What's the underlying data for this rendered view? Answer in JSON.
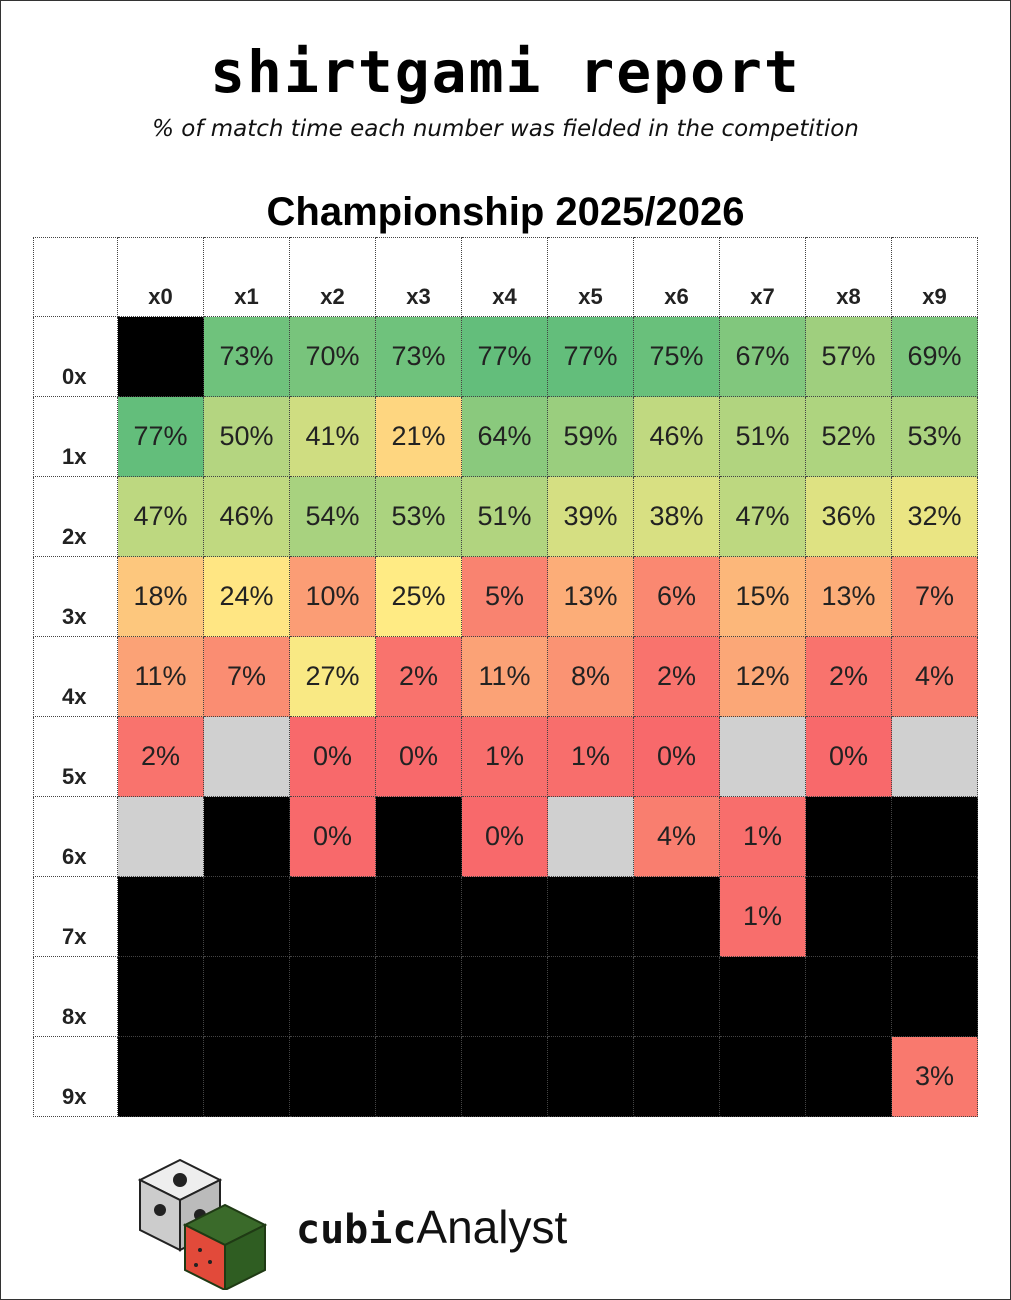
{
  "header": {
    "title": "shirtgami report",
    "subtitle": "% of match time each number was fielded in the competition"
  },
  "chart_data": {
    "type": "heatmap",
    "title": "Championship 2025/2026",
    "x_categories": [
      "x0",
      "x1",
      "x2",
      "x3",
      "x4",
      "x5",
      "x6",
      "x7",
      "x8",
      "x9"
    ],
    "y_categories": [
      "0x",
      "1x",
      "2x",
      "3x",
      "4x",
      "5x",
      "6x",
      "7x",
      "8x",
      "9x"
    ],
    "values": [
      [
        null,
        73,
        70,
        73,
        77,
        77,
        75,
        67,
        57,
        69
      ],
      [
        77,
        50,
        41,
        21,
        64,
        59,
        46,
        51,
        52,
        53
      ],
      [
        47,
        46,
        54,
        53,
        51,
        39,
        38,
        47,
        36,
        32
      ],
      [
        18,
        24,
        10,
        25,
        5,
        13,
        6,
        15,
        13,
        7
      ],
      [
        11,
        7,
        27,
        2,
        11,
        8,
        2,
        12,
        2,
        4
      ],
      [
        2,
        null,
        0,
        0,
        1,
        1,
        0,
        null,
        0,
        null
      ],
      [
        null,
        null,
        0,
        null,
        0,
        null,
        4,
        1,
        null,
        null
      ],
      [
        null,
        null,
        null,
        null,
        null,
        null,
        null,
        1,
        null,
        null
      ],
      [
        null,
        null,
        null,
        null,
        null,
        null,
        null,
        null,
        null,
        null
      ],
      [
        null,
        null,
        null,
        null,
        null,
        null,
        null,
        null,
        null,
        3
      ]
    ],
    "value_labels": [
      [
        null,
        "73%",
        "70%",
        "73%",
        "77%",
        "77%",
        "75%",
        "67%",
        "57%",
        "69%"
      ],
      [
        "77%",
        "50%",
        "41%",
        "21%",
        "64%",
        "59%",
        "46%",
        "51%",
        "52%",
        "53%"
      ],
      [
        "47%",
        "46%",
        "54%",
        "53%",
        "51%",
        "39%",
        "38%",
        "47%",
        "36%",
        "32%"
      ],
      [
        "18%",
        "24%",
        "10%",
        "25%",
        "5%",
        "13%",
        "6%",
        "15%",
        "13%",
        "7%"
      ],
      [
        "11%",
        "7%",
        "27%",
        "2%",
        "11%",
        "8%",
        "2%",
        "12%",
        "2%",
        "4%"
      ],
      [
        "2%",
        null,
        "0%",
        "0%",
        "1%",
        "1%",
        "0%",
        null,
        "0%",
        null
      ],
      [
        null,
        null,
        "0%",
        null,
        "0%",
        null,
        "4%",
        "1%",
        null,
        null
      ],
      [
        null,
        null,
        null,
        null,
        null,
        null,
        null,
        "1%",
        null,
        null
      ],
      [
        null,
        null,
        null,
        null,
        null,
        null,
        null,
        null,
        null,
        null
      ],
      [
        null,
        null,
        null,
        null,
        null,
        null,
        null,
        null,
        null,
        "3%"
      ]
    ],
    "colors": [
      [
        "#000000",
        "#6fc27c",
        "#78c47c",
        "#6fc27c",
        "#63be7b",
        "#63be7b",
        "#69c07b",
        "#81c77d",
        "#9fcf7e",
        "#7bc57c"
      ],
      [
        "#63be7b",
        "#b4d580",
        "#cfdd81",
        "#fed680",
        "#8ac97d",
        "#9ace7e",
        "#c0d980",
        "#b1d47f",
        "#aed47f",
        "#abd37f"
      ],
      [
        "#bdd880",
        "#c0d980",
        "#a8d27f",
        "#abd37f",
        "#b1d47f",
        "#d5df82",
        "#d8e082",
        "#bdd880",
        "#dee282",
        "#eae583"
      ],
      [
        "#fdc77d",
        "#ffe683",
        "#fb9d75",
        "#ffeb84",
        "#f98370",
        "#fcad78",
        "#fa8871",
        "#fcb77a",
        "#fcad78",
        "#fa8d72"
      ],
      [
        "#fba276",
        "#fa8d72",
        "#f9e984",
        "#f9736d",
        "#fba276",
        "#fa9373",
        "#f9736d",
        "#fba777",
        "#f9736d",
        "#f97e6f"
      ],
      [
        "#f9736d",
        "#d0d0d0",
        "#f8696b",
        "#f8696b",
        "#f86e6c",
        "#f86e6c",
        "#f8696b",
        "#d0d0d0",
        "#f8696b",
        "#d0d0d0"
      ],
      [
        "#d0d0d0",
        "#000000",
        "#f8696b",
        "#000000",
        "#f8696b",
        "#d0d0d0",
        "#f97e6f",
        "#f86e6c",
        "#000000",
        "#000000"
      ],
      [
        "#000000",
        "#000000",
        "#000000",
        "#000000",
        "#000000",
        "#000000",
        "#000000",
        "#f86e6c",
        "#000000",
        "#000000"
      ],
      [
        "#000000",
        "#000000",
        "#000000",
        "#000000",
        "#000000",
        "#000000",
        "#000000",
        "#000000",
        "#000000",
        "#000000"
      ],
      [
        "#000000",
        "#000000",
        "#000000",
        "#000000",
        "#000000",
        "#000000",
        "#000000",
        "#000000",
        "#000000",
        "#f9796e"
      ]
    ]
  },
  "footer": {
    "brand_bold": "cubic",
    "brand_light": "Analyst"
  }
}
